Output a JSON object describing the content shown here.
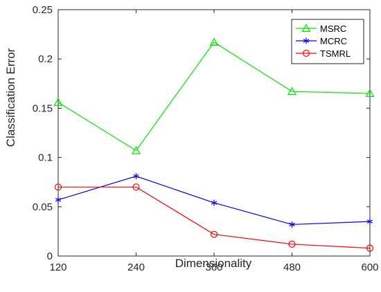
{
  "chart_data": {
    "type": "line",
    "xlabel": "Dimensionality",
    "ylabel": "Classification Error",
    "x": [
      120,
      240,
      360,
      480,
      600
    ],
    "xlim": [
      120,
      600
    ],
    "ylim": [
      0,
      0.25
    ],
    "xticks": [
      "120",
      "240",
      "360",
      "480",
      "600"
    ],
    "yticks": [
      "0",
      "0.05",
      "0.1",
      "0.15",
      "0.2",
      "0.25"
    ],
    "ytick_values": [
      0,
      0.05,
      0.1,
      0.15,
      0.2,
      0.25
    ],
    "grid": false,
    "legend_position": "top-right",
    "series": [
      {
        "name": "MSRC",
        "marker": "triangle",
        "color": "#00e600",
        "values": [
          0.156,
          0.107,
          0.217,
          0.167,
          0.165
        ]
      },
      {
        "name": "MCRC",
        "marker": "asterisk",
        "color": "#0000ff",
        "values": [
          0.057,
          0.081,
          0.054,
          0.032,
          0.035
        ]
      },
      {
        "name": "TSMRL",
        "marker": "circle",
        "color": "#ff0000",
        "values": [
          0.07,
          0.07,
          0.022,
          0.012,
          0.008
        ]
      }
    ]
  }
}
